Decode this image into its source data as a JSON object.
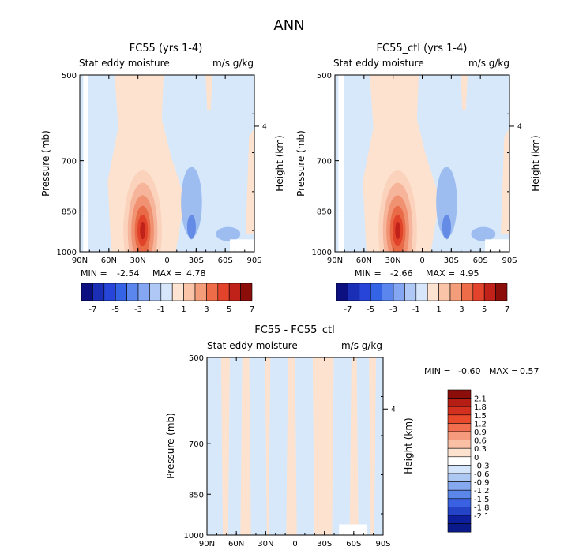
{
  "page_title": "ANN",
  "colors": {
    "zero": "#ffffff",
    "pos_low": "#fde3cf",
    "pos_mid": "#f6b49a",
    "pos_high": "#e0432a",
    "pos_max": "#8b0e0a",
    "neg_low": "#d7e8fb",
    "neg_mid": "#9dbdf0",
    "neg_high": "#3d6bdf",
    "neg_max": "#0a1a8a"
  },
  "chart_data": [
    {
      "type": "heatmap",
      "title": "FC55 (yrs 1-4)",
      "field_label": "Stat eddy moisture",
      "units": "m/s g/kg",
      "ylabel": "Pressure (mb)",
      "ylabel_right": "Height (km)",
      "x_ticks": [
        "90N",
        "60N",
        "30N",
        "0",
        "30S",
        "60S",
        "90S"
      ],
      "y_ticks": [
        "500",
        "700",
        "850",
        "1000"
      ],
      "y_ticks_right": [
        "4"
      ],
      "min_label": "MIN =",
      "min_value": "-2.54",
      "max_label": "MAX =",
      "max_value": "4.78",
      "colorbar_labels": [
        "-7",
        "-5",
        "-3",
        "-1",
        "1",
        "3",
        "5",
        "7"
      ],
      "max_intensity": 4.78,
      "min_intensity": -2.54
    },
    {
      "type": "heatmap",
      "title": "FC55_ctl (yrs 1-4)",
      "field_label": "Stat eddy moisture",
      "units": "m/s g/kg",
      "ylabel": "Pressure (mb)",
      "ylabel_right": "Height (km)",
      "x_ticks": [
        "90N",
        "60N",
        "30N",
        "0",
        "30S",
        "60S",
        "90S"
      ],
      "y_ticks": [
        "500",
        "700",
        "850",
        "1000"
      ],
      "y_ticks_right": [
        "4"
      ],
      "min_label": "MIN =",
      "min_value": "-2.66",
      "max_label": "MAX =",
      "max_value": "4.95",
      "colorbar_labels": [
        "-7",
        "-5",
        "-3",
        "-1",
        "1",
        "3",
        "5",
        "7"
      ],
      "max_intensity": 4.95,
      "min_intensity": -2.66
    },
    {
      "type": "heatmap",
      "title": "FC55 - FC55_ctl",
      "field_label": "Stat eddy moisture",
      "units": "m/s g/kg",
      "ylabel": "Pressure (mb)",
      "ylabel_right": "Height (km)",
      "x_ticks": [
        "90N",
        "60N",
        "30N",
        "0",
        "30S",
        "60S",
        "90S"
      ],
      "y_ticks": [
        "500",
        "700",
        "850",
        "1000"
      ],
      "y_ticks_right": [
        "4"
      ],
      "min_label": "MIN =",
      "min_value": "-0.60",
      "max_label": "MAX =",
      "max_value": "0.57",
      "colorbar_labels": [
        "2.1",
        "1.8",
        "1.5",
        "1.2",
        "0.9",
        "0.6",
        "0.3",
        "0",
        "-0.3",
        "-0.6",
        "-0.9",
        "-1.2",
        "-1.5",
        "-1.8",
        "-2.1"
      ],
      "max_intensity": 0.57,
      "min_intensity": -0.6
    }
  ],
  "colorbar_colors_h": [
    "#0b0f80",
    "#1a2fb6",
    "#2745d8",
    "#3563e6",
    "#5b86ee",
    "#85a6f2",
    "#b0c8f6",
    "#d7e6fb",
    "#fde4d2",
    "#f9c4a7",
    "#f49d7a",
    "#ee6d48",
    "#e2432a",
    "#c0221a",
    "#8b0e0a"
  ],
  "colorbar_colors_v": [
    "#8b0e0a",
    "#b61d14",
    "#d4301f",
    "#e84a2b",
    "#f16f4f",
    "#f59a7c",
    "#f9c0a5",
    "#fde3cf",
    "#ffffff",
    "#d4e4fa",
    "#aec8f4",
    "#86a8ef",
    "#5b86ea",
    "#3a61e2",
    "#2443c7",
    "#0e1f9e",
    "#0a1a8a"
  ]
}
